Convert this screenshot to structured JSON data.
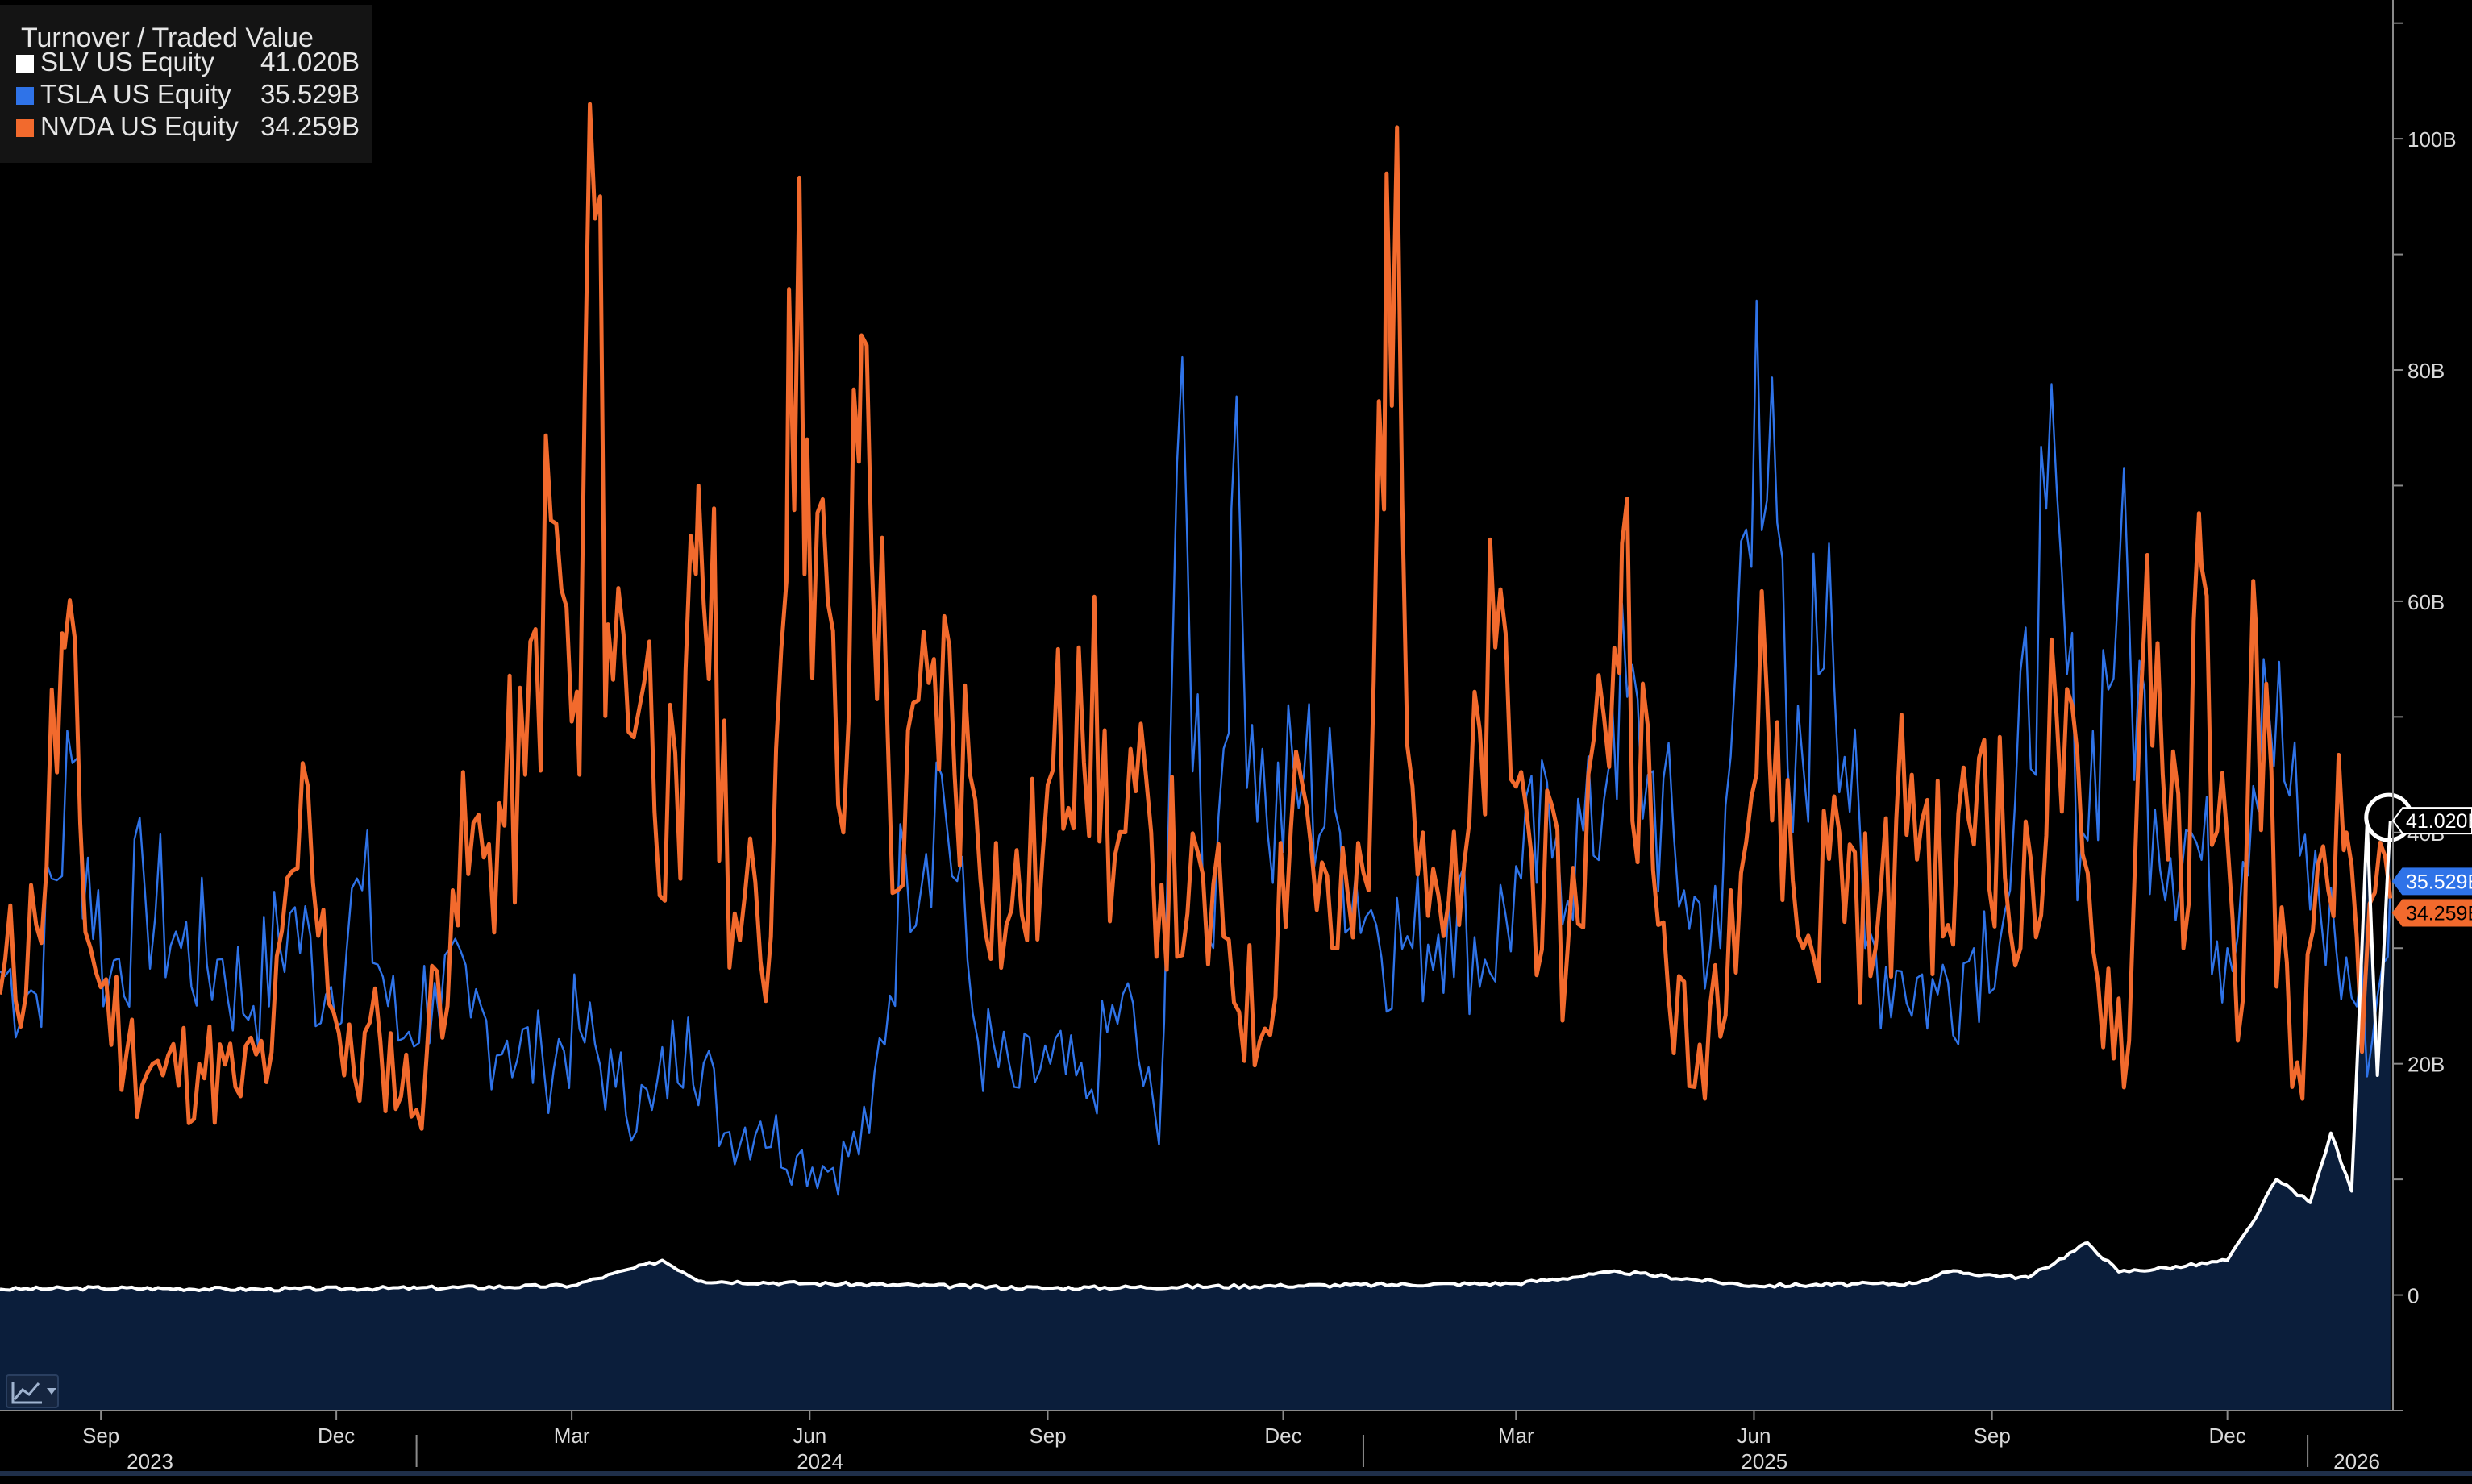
{
  "chart_data": {
    "type": "line",
    "title": "Turnover / Traded Value",
    "yunit": "B",
    "ylim": [
      -10,
      112
    ],
    "xlim": [
      "2023-07-24",
      "2026-02-03"
    ],
    "grid": false,
    "legend_position": "top-left",
    "y_ticks": [
      {
        "value": 100,
        "label": "100B"
      },
      {
        "value": 80,
        "label": "80B"
      },
      {
        "value": 60,
        "label": "60B"
      },
      {
        "value": 40,
        "label": "40B"
      },
      {
        "value": 20,
        "label": "20B"
      },
      {
        "value": 0,
        "label": "0"
      }
    ],
    "x_month_ticks": [
      {
        "date": "2023-09-01",
        "label": "Sep"
      },
      {
        "date": "2023-12-01",
        "label": "Dec"
      },
      {
        "date": "2024-03-01",
        "label": "Mar"
      },
      {
        "date": "2024-06-01",
        "label": "Jun"
      },
      {
        "date": "2024-09-01",
        "label": "Sep"
      },
      {
        "date": "2024-12-01",
        "label": "Dec"
      },
      {
        "date": "2025-03-01",
        "label": "Mar"
      },
      {
        "date": "2025-06-01",
        "label": "Jun"
      },
      {
        "date": "2025-09-01",
        "label": "Sep"
      },
      {
        "date": "2025-12-01",
        "label": "Dec"
      }
    ],
    "x_year_labels": [
      {
        "center": "2023-09-20",
        "label": "2023"
      },
      {
        "center": "2024-06-05",
        "label": "2024"
      },
      {
        "center": "2025-06-05",
        "label": "2025"
      },
      {
        "center": "2026-01-20",
        "label": "2026"
      }
    ],
    "year_boundaries": [
      "2024-01-01",
      "2025-01-01",
      "2026-01-01"
    ],
    "series": [
      {
        "name": "TSLA US Equity",
        "ticker_value": "35.529B",
        "color": "#2f73e8",
        "points": [
          [
            "2023-07-24",
            28
          ],
          [
            "2023-08-07",
            26
          ],
          [
            "2023-08-21",
            46
          ],
          [
            "2023-09-04",
            27
          ],
          [
            "2023-09-18",
            35
          ],
          [
            "2023-10-02",
            30
          ],
          [
            "2023-10-16",
            29
          ],
          [
            "2023-10-30",
            25
          ],
          [
            "2023-11-13",
            33
          ],
          [
            "2023-11-27",
            26
          ],
          [
            "2023-12-11",
            35
          ],
          [
            "2023-12-25",
            22
          ],
          [
            "2024-01-08",
            27
          ],
          [
            "2024-01-22",
            24
          ],
          [
            "2024-02-05",
            22
          ],
          [
            "2024-02-19",
            20
          ],
          [
            "2024-03-04",
            23
          ],
          [
            "2024-03-18",
            18
          ],
          [
            "2024-04-01",
            16
          ],
          [
            "2024-04-15",
            24
          ],
          [
            "2024-04-29",
            14
          ],
          [
            "2024-05-13",
            15
          ],
          [
            "2024-05-27",
            12
          ],
          [
            "2024-06-10",
            11
          ],
          [
            "2024-06-24",
            14
          ],
          [
            "2024-07-08",
            38
          ],
          [
            "2024-07-22",
            45
          ],
          [
            "2024-08-05",
            22
          ],
          [
            "2024-08-19",
            18
          ],
          [
            "2024-09-02",
            20
          ],
          [
            "2024-09-16",
            17
          ],
          [
            "2024-09-30",
            26
          ],
          [
            "2024-10-14",
            13
          ],
          [
            "2024-10-21",
            72
          ],
          [
            "2024-11-04",
            30
          ],
          [
            "2024-11-11",
            68
          ],
          [
            "2024-11-25",
            40
          ],
          [
            "2024-12-09",
            45
          ],
          [
            "2024-12-23",
            40
          ],
          [
            "2025-01-06",
            32
          ],
          [
            "2025-01-20",
            30
          ],
          [
            "2025-02-03",
            34
          ],
          [
            "2025-02-17",
            29
          ],
          [
            "2025-03-03",
            36
          ],
          [
            "2025-03-17",
            40
          ],
          [
            "2025-03-31",
            38
          ],
          [
            "2025-04-07",
            52
          ],
          [
            "2025-04-21",
            45
          ],
          [
            "2025-05-05",
            35
          ],
          [
            "2025-05-19",
            30
          ],
          [
            "2025-06-02",
            86
          ],
          [
            "2025-06-16",
            40
          ],
          [
            "2025-06-30",
            65
          ],
          [
            "2025-07-14",
            30
          ],
          [
            "2025-07-28",
            28
          ],
          [
            "2025-08-11",
            26
          ],
          [
            "2025-08-25",
            30
          ],
          [
            "2025-09-08",
            35
          ],
          [
            "2025-09-22",
            68
          ],
          [
            "2025-10-06",
            40
          ],
          [
            "2025-10-20",
            62
          ],
          [
            "2025-11-03",
            42
          ],
          [
            "2025-11-17",
            40
          ],
          [
            "2025-12-01",
            30
          ],
          [
            "2025-12-15",
            55
          ],
          [
            "2025-12-29",
            38
          ],
          [
            "2026-01-12",
            30
          ],
          [
            "2026-01-26",
            22
          ],
          [
            "2026-02-02",
            35.5
          ]
        ]
      },
      {
        "name": "NVDA US Equity",
        "ticker_value": "34.259B",
        "color": "#f26a2d",
        "points": [
          [
            "2023-07-24",
            26
          ],
          [
            "2023-08-07",
            32
          ],
          [
            "2023-08-18",
            56
          ],
          [
            "2023-08-28",
            30
          ],
          [
            "2023-09-11",
            21
          ],
          [
            "2023-09-25",
            19
          ],
          [
            "2023-10-09",
            20
          ],
          [
            "2023-10-23",
            18
          ],
          [
            "2023-11-06",
            21
          ],
          [
            "2023-11-20",
            44
          ],
          [
            "2023-12-04",
            19
          ],
          [
            "2023-12-18",
            22
          ],
          [
            "2024-01-01",
            16
          ],
          [
            "2024-01-15",
            35
          ],
          [
            "2024-01-29",
            39
          ],
          [
            "2024-02-12",
            45
          ],
          [
            "2024-02-22",
            67
          ],
          [
            "2024-03-04",
            45
          ],
          [
            "2024-03-08",
            103
          ],
          [
            "2024-03-15",
            58
          ],
          [
            "2024-03-29",
            53
          ],
          [
            "2024-04-12",
            36
          ],
          [
            "2024-04-19",
            70
          ],
          [
            "2024-05-03",
            33
          ],
          [
            "2024-05-17",
            31
          ],
          [
            "2024-05-24",
            87
          ],
          [
            "2024-05-31",
            74
          ],
          [
            "2024-06-14",
            40
          ],
          [
            "2024-06-21",
            83
          ],
          [
            "2024-07-05",
            35
          ],
          [
            "2024-07-19",
            55
          ],
          [
            "2024-08-02",
            45
          ],
          [
            "2024-08-16",
            32
          ],
          [
            "2024-08-30",
            38
          ],
          [
            "2024-09-13",
            56
          ],
          [
            "2024-09-27",
            38
          ],
          [
            "2024-10-11",
            40
          ],
          [
            "2024-10-25",
            33
          ],
          [
            "2024-11-08",
            31
          ],
          [
            "2024-11-22",
            22
          ],
          [
            "2024-12-06",
            47
          ],
          [
            "2024-12-20",
            30
          ],
          [
            "2025-01-03",
            35
          ],
          [
            "2025-01-10",
            97
          ],
          [
            "2025-01-24",
            40
          ],
          [
            "2025-02-07",
            32
          ],
          [
            "2025-02-21",
            56
          ],
          [
            "2025-03-07",
            38
          ],
          [
            "2025-03-21",
            30
          ],
          [
            "2025-04-04",
            50
          ],
          [
            "2025-04-11",
            65
          ],
          [
            "2025-04-25",
            32
          ],
          [
            "2025-05-09",
            18
          ],
          [
            "2025-05-23",
            35
          ],
          [
            "2025-06-06",
            52
          ],
          [
            "2025-06-20",
            30
          ],
          [
            "2025-07-04",
            40
          ],
          [
            "2025-07-18",
            30
          ],
          [
            "2025-08-01",
            45
          ],
          [
            "2025-08-15",
            32
          ],
          [
            "2025-08-29",
            48
          ],
          [
            "2025-09-12",
            30
          ],
          [
            "2025-09-26",
            50
          ],
          [
            "2025-10-10",
            30
          ],
          [
            "2025-10-24",
            22
          ],
          [
            "2025-10-31",
            64
          ],
          [
            "2025-11-14",
            30
          ],
          [
            "2025-11-21",
            63
          ],
          [
            "2025-12-05",
            22
          ],
          [
            "2025-12-12",
            58
          ],
          [
            "2025-12-26",
            18
          ],
          [
            "2026-01-09",
            35
          ],
          [
            "2026-01-16",
            40
          ],
          [
            "2026-01-23",
            26
          ],
          [
            "2026-02-02",
            34.3
          ]
        ]
      },
      {
        "name": "SLV US Equity",
        "ticker_value": "41.020B",
        "color": "#ffffff",
        "points": [
          [
            "2023-07-24",
            0.5
          ],
          [
            "2023-09-01",
            0.6
          ],
          [
            "2023-11-01",
            0.5
          ],
          [
            "2024-01-01",
            0.6
          ],
          [
            "2024-03-01",
            0.8
          ],
          [
            "2024-04-05",
            3
          ],
          [
            "2024-04-20",
            1.2
          ],
          [
            "2024-06-01",
            1
          ],
          [
            "2024-09-01",
            0.6
          ],
          [
            "2024-12-01",
            0.8
          ],
          [
            "2025-03-01",
            1
          ],
          [
            "2025-04-10",
            2
          ],
          [
            "2025-06-01",
            0.8
          ],
          [
            "2025-08-01",
            1
          ],
          [
            "2025-08-15",
            2
          ],
          [
            "2025-09-15",
            1.5
          ],
          [
            "2025-10-08",
            4.5
          ],
          [
            "2025-10-20",
            2
          ],
          [
            "2025-11-15",
            2.5
          ],
          [
            "2025-12-01",
            3
          ],
          [
            "2025-12-10",
            6
          ],
          [
            "2025-12-20",
            10
          ],
          [
            "2026-01-02",
            8
          ],
          [
            "2026-01-10",
            14
          ],
          [
            "2026-01-18",
            9
          ],
          [
            "2026-01-24",
            41
          ],
          [
            "2026-01-28",
            19
          ],
          [
            "2026-02-02",
            41.02
          ]
        ]
      }
    ]
  },
  "markers": {
    "callout_circle_series": "SLV US Equity"
  }
}
